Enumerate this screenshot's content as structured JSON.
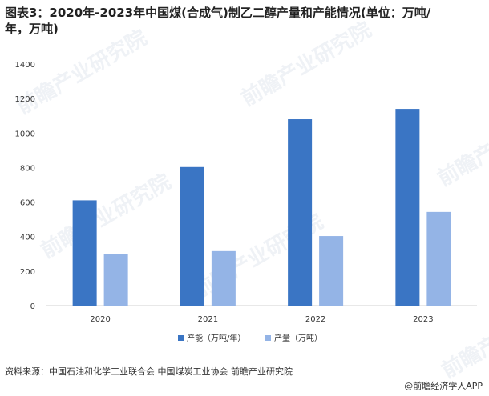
{
  "header": {
    "title_line1": "图表3：2020年-2023年中国煤(合成气)制乙二醇产量和产能情况(单位：万吨/",
    "title_line2": "年，万吨)"
  },
  "footer": {
    "source": "资料来源：中国石油和化学工业联合会 中国煤炭工业协会 前瞻产业研究院",
    "brand": "@前瞻经济学人APP"
  },
  "watermark": {
    "text": "前瞻产业研究院"
  },
  "colors": {
    "capacity": "#3a75c4",
    "output": "#94b4e6",
    "axis": "#d0d0d0"
  },
  "chart_data": {
    "type": "bar",
    "title": "图表3：2020年-2023年中国煤(合成气)制乙二醇产量和产能情况(单位：万吨/年，万吨)",
    "categories": [
      "2020",
      "2021",
      "2022",
      "2023"
    ],
    "series": [
      {
        "name": "产能（万吨/年）",
        "values": [
          610,
          803,
          1080,
          1140
        ]
      },
      {
        "name": "产量（万吨）",
        "values": [
          297,
          316,
          403,
          543
        ]
      }
    ],
    "ylim": [
      0,
      1400
    ],
    "yticks": [
      0,
      200,
      400,
      600,
      800,
      1000,
      1200,
      1400
    ],
    "xlabel": "",
    "ylabel": "",
    "grid": false,
    "legend": "bottom-center"
  }
}
